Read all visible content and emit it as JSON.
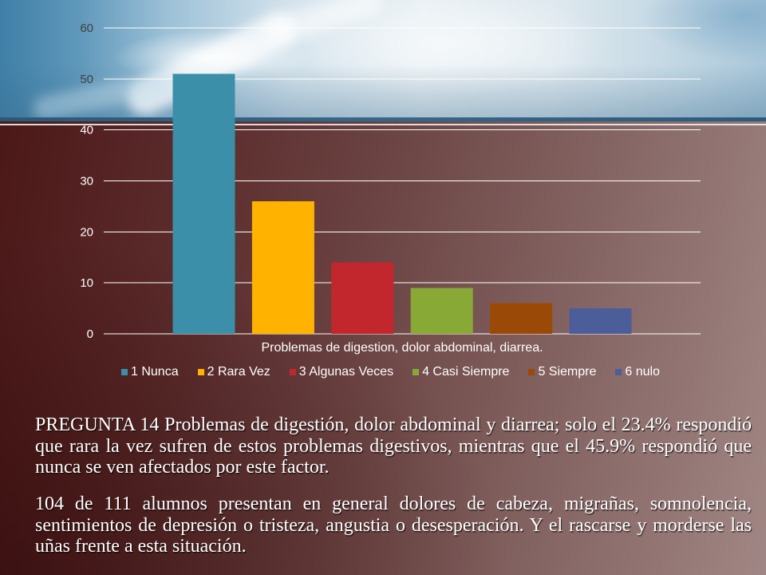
{
  "chart_data": {
    "type": "bar",
    "categories": [
      "Problemas de digestion, dolor abdominal, diarrea."
    ],
    "series": [
      {
        "name": "1 Nunca",
        "values": [
          51
        ],
        "color": "#3b8fa9"
      },
      {
        "name": "2 Rara Vez",
        "values": [
          26
        ],
        "color": "#ffb300"
      },
      {
        "name": "3 Algunas Veces",
        "values": [
          14
        ],
        "color": "#c3272e"
      },
      {
        "name": "4 Casi Siempre",
        "values": [
          9
        ],
        "color": "#88a935"
      },
      {
        "name": "5 Siempre",
        "values": [
          6
        ],
        "color": "#9a4a06"
      },
      {
        "name": "6 nulo",
        "values": [
          5
        ],
        "color": "#4b5e9a"
      }
    ],
    "yticks": [
      0,
      10,
      20,
      30,
      40,
      50,
      60
    ],
    "ylim": [
      0,
      60
    ],
    "grid": true,
    "legend": "bottom"
  },
  "text": {
    "paragraph_1": "PREGUNTA 14 Problemas de digestión, dolor abdominal y diarrea; solo el 23.4% respondió que rara la vez sufren de estos problemas digestivos, mientras que el 45.9% respondió que nunca se ven afectados por este factor.",
    "paragraph_2": "104 de 111 alumnos presentan en general dolores de cabeza, migrañas, somnolencia, sentimientos de depresión o tristeza, angustia o desesperación. Y  el rascarse y morderse las uñas frente a esta situación."
  }
}
